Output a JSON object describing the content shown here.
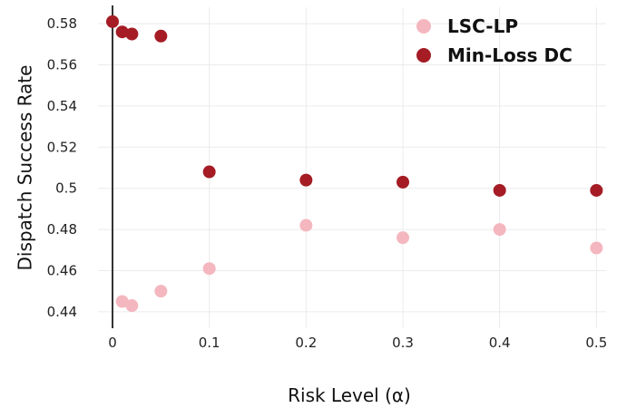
{
  "chart_data": {
    "type": "scatter",
    "title": "",
    "xlabel": "Risk Level (α)",
    "ylabel": "Dispatch Success Rate",
    "xlim": [
      -0.015,
      0.51
    ],
    "ylim": [
      0.432,
      0.588
    ],
    "x_ticks": [
      0,
      0.1,
      0.2,
      0.3,
      0.4,
      0.5
    ],
    "x_tick_labels": [
      "0",
      "0.1",
      "0.2",
      "0.3",
      "0.4",
      "0.5"
    ],
    "y_ticks": [
      0.44,
      0.46,
      0.48,
      0.5,
      0.52,
      0.54,
      0.56,
      0.58
    ],
    "y_tick_labels": [
      "0.44",
      "0.46",
      "0.48",
      "0.5",
      "0.52",
      "0.54",
      "0.56",
      "0.58"
    ],
    "grid": true,
    "legend_position": "top-right",
    "series": [
      {
        "name": "LSC-LP",
        "color": "#f4b7bf",
        "points": [
          {
            "x": 0.01,
            "y": 0.445
          },
          {
            "x": 0.02,
            "y": 0.443
          },
          {
            "x": 0.05,
            "y": 0.45
          },
          {
            "x": 0.1,
            "y": 0.461
          },
          {
            "x": 0.2,
            "y": 0.482
          },
          {
            "x": 0.3,
            "y": 0.476
          },
          {
            "x": 0.4,
            "y": 0.48
          },
          {
            "x": 0.5,
            "y": 0.471
          }
        ]
      },
      {
        "name": "Min-Loss DC",
        "color": "#a51c24",
        "points": [
          {
            "x": 0.0,
            "y": 0.581
          },
          {
            "x": 0.01,
            "y": 0.576
          },
          {
            "x": 0.02,
            "y": 0.575
          },
          {
            "x": 0.05,
            "y": 0.574
          },
          {
            "x": 0.1,
            "y": 0.508
          },
          {
            "x": 0.2,
            "y": 0.504
          },
          {
            "x": 0.3,
            "y": 0.503
          },
          {
            "x": 0.4,
            "y": 0.499
          },
          {
            "x": 0.5,
            "y": 0.499
          }
        ]
      }
    ]
  }
}
